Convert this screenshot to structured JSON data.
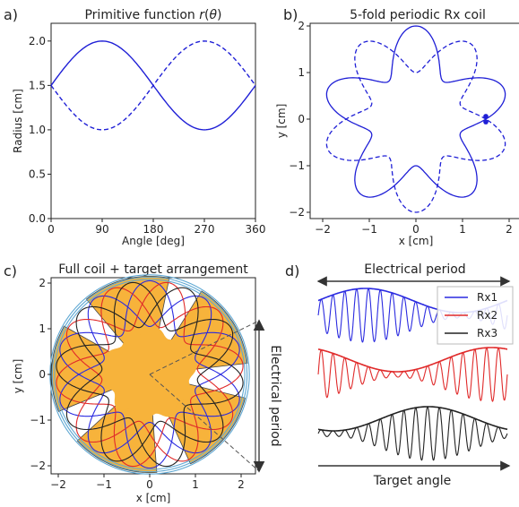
{
  "colors": {
    "coil_blue": "#1f1fd6",
    "rx1": "#2a2ae0",
    "rx2": "#e02a2a",
    "rx3": "#222222",
    "target": "#f7b33b",
    "ring": "#5fa8d3"
  },
  "chart_data": [
    {
      "panel": "a)",
      "type": "line",
      "title": "Primitive function r(θ)",
      "xlabel": "Angle [deg]",
      "ylabel": "Radius [cm]",
      "xlim": [
        0,
        360
      ],
      "ylim": [
        0,
        2.2
      ],
      "xticks": [
        "0",
        "90",
        "180",
        "270",
        "360"
      ],
      "yticks": [
        "0.0",
        "0.5",
        "1.0",
        "1.5",
        "2.0"
      ],
      "series": [
        {
          "style": "solid",
          "x": [
            0,
            45,
            90,
            135,
            180,
            225,
            270,
            315,
            360
          ],
          "values": [
            1.5,
            1.85,
            2.0,
            1.85,
            1.5,
            1.15,
            1.0,
            1.15,
            1.5
          ]
        },
        {
          "style": "dashed",
          "x": [
            0,
            45,
            90,
            135,
            180,
            225,
            270,
            315,
            360
          ],
          "values": [
            1.5,
            1.15,
            1.0,
            1.15,
            1.5,
            1.85,
            2.0,
            1.85,
            1.5
          ]
        }
      ]
    },
    {
      "panel": "b)",
      "type": "line",
      "title": "5-fold periodic Rx coil",
      "xlabel": "x [cm]",
      "ylabel": "y [cm]",
      "xlim": [
        -2.3,
        2.3
      ],
      "ylim": [
        -2.3,
        2.3
      ],
      "xticks": [
        "−2",
        "−1",
        "0",
        "1",
        "2"
      ],
      "yticks": [
        "−2",
        "−1",
        "0",
        "1",
        "2"
      ],
      "folds": 5,
      "radius_mean": 1.5,
      "radius_amplitude": 0.5,
      "markers": [
        {
          "x": 1.5,
          "y": 0.06
        },
        {
          "x": 1.5,
          "y": -0.06
        }
      ]
    },
    {
      "panel": "c)",
      "type": "line",
      "title": "Full coil + target arrangement",
      "xlabel": "x [cm]",
      "ylabel": "y [cm]",
      "xlim": [
        -2.3,
        2.3
      ],
      "ylim": [
        -2.3,
        2.3
      ],
      "xticks": [
        "−2",
        "−1",
        "0",
        "1",
        "2"
      ],
      "yticks": [
        "−2",
        "−1",
        "0",
        "1",
        "2"
      ],
      "side_label": "Electrical period",
      "target_lobes": 5,
      "series": [
        {
          "name": "Rx1",
          "phase_deg": 0
        },
        {
          "name": "Rx2",
          "phase_deg": 24
        },
        {
          "name": "Rx3",
          "phase_deg": 48
        }
      ]
    },
    {
      "panel": "d)",
      "type": "line",
      "top_label": "Electrical period",
      "bottom_label": "Target angle",
      "legend": [
        "Rx1",
        "Rx2",
        "Rx3"
      ],
      "legend_position": "top-right"
    }
  ]
}
